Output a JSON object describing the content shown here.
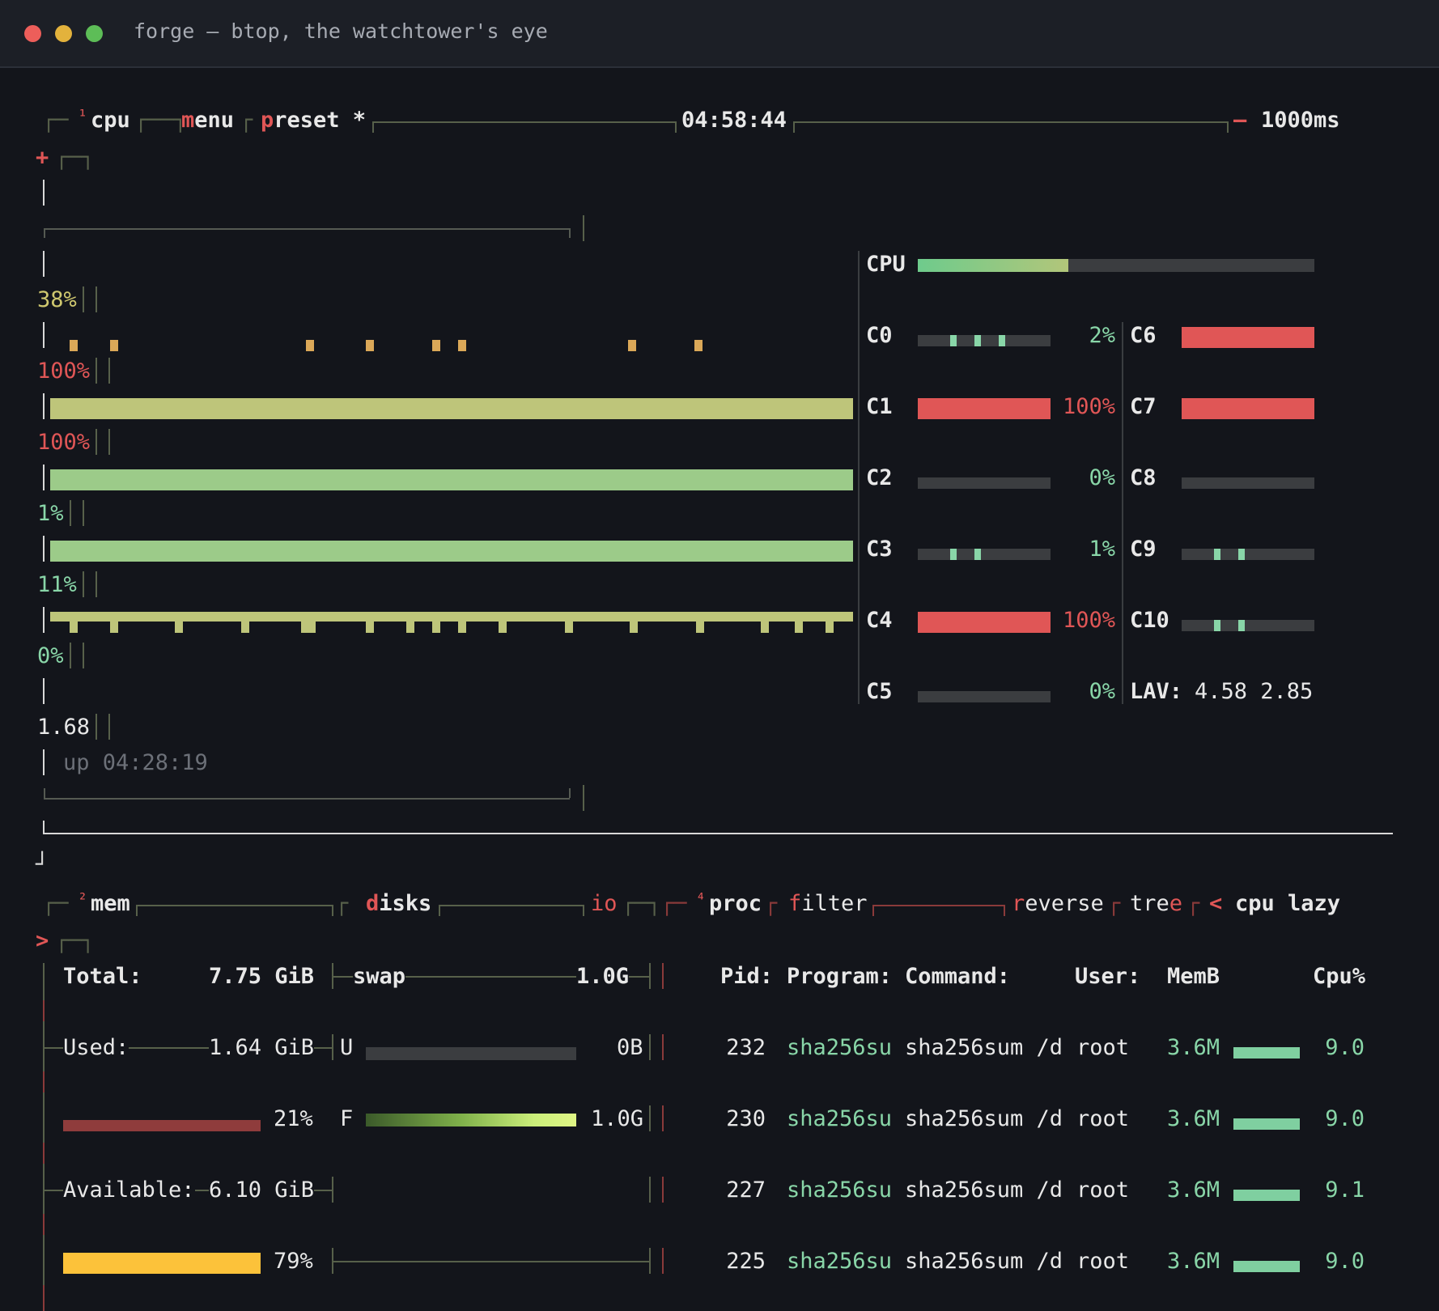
{
  "window": {
    "title": "forge — btop, the watchtower's eye"
  },
  "cpu_box": {
    "number": "¹",
    "tab_cpu": "cpu",
    "tab_menu_key": "m",
    "tab_menu_rest": "enu",
    "tab_preset_key": "p",
    "tab_preset_rest": "reset *",
    "clock": "04:58:44",
    "minus": "–",
    "interval": "1000ms",
    "plus": "+",
    "side_values": [
      "38%",
      "100%",
      "100%",
      "1%",
      "11%",
      "0%",
      "1.68"
    ],
    "uptime": "up 04:28:19",
    "total_label": "CPU",
    "total_pct": 38,
    "cores": [
      {
        "name": "C0",
        "pct": "2%",
        "level": 2
      },
      {
        "name": "C1",
        "pct": "100%",
        "level": 100
      },
      {
        "name": "C2",
        "pct": "0%",
        "level": 0
      },
      {
        "name": "C3",
        "pct": "1%",
        "level": 1
      },
      {
        "name": "C4",
        "pct": "100%",
        "level": 100
      },
      {
        "name": "C5",
        "pct": "0%",
        "level": 0
      }
    ],
    "cores_right": [
      {
        "name": "C6",
        "level": 100
      },
      {
        "name": "C7",
        "level": 100
      },
      {
        "name": "C8",
        "level": 0
      },
      {
        "name": "C9",
        "level": 1
      },
      {
        "name": "C10",
        "level": 1
      }
    ],
    "lav_label": "LAV:",
    "lav_values": "4.58 2.85"
  },
  "mem_box": {
    "number": "²",
    "tab_mem": "mem",
    "tab_disks_key": "d",
    "tab_disks_rest": "isks",
    "tab_io_key": "io",
    "arrow": ">",
    "total_label": "Total:",
    "total_value": "7.75 GiB",
    "used_label": "Used:",
    "used_value": "1.64 GiB",
    "used_pct": "21%",
    "used_level": 21,
    "available_label": "Available:",
    "available_value": "6.10 GiB",
    "available_pct": "79%",
    "available_level": 79,
    "swap_label": "swap",
    "swap_value": "1.0G",
    "swap_u_label": "U",
    "swap_u_value": "0B",
    "swap_f_label": "F",
    "swap_f_value": "1.0G"
  },
  "proc_box": {
    "number": "⁴",
    "tab_proc": "proc",
    "tab_filter_key": "f",
    "tab_filter_rest": "ilter",
    "tab_reverse_key": "r",
    "tab_reverse_rest": "everse",
    "tab_tree_a": "tre",
    "tab_tree_b": "e",
    "sort_arrow": "<",
    "sort_label": "cpu lazy",
    "headers": {
      "pid": "Pid:",
      "program": "Program:",
      "command": "Command:",
      "user": "User:",
      "mem": "MemB",
      "cpu": "Cpu%"
    },
    "rows": [
      {
        "pid": "232",
        "program": "sha256su",
        "command": "sha256sum /d",
        "user": "root",
        "mem": "3.6M",
        "cpu": "9.0"
      },
      {
        "pid": "230",
        "program": "sha256su",
        "command": "sha256sum /d",
        "user": "root",
        "mem": "3.6M",
        "cpu": "9.0"
      },
      {
        "pid": "227",
        "program": "sha256su",
        "command": "sha256sum /d",
        "user": "root",
        "mem": "3.6M",
        "cpu": "9.1"
      },
      {
        "pid": "225",
        "program": "sha256su",
        "command": "sha256sum /d",
        "user": "root",
        "mem": "3.6M",
        "cpu": "9.0"
      }
    ]
  },
  "colors": {
    "red": "#e05656",
    "green": "#89d6a8",
    "yellow": "#cfc86f",
    "mem_used": "#8f3c3c",
    "mem_available": "#fcc23a",
    "graph_green": "#9ccb89",
    "graph_yellow": "#bec57a"
  }
}
